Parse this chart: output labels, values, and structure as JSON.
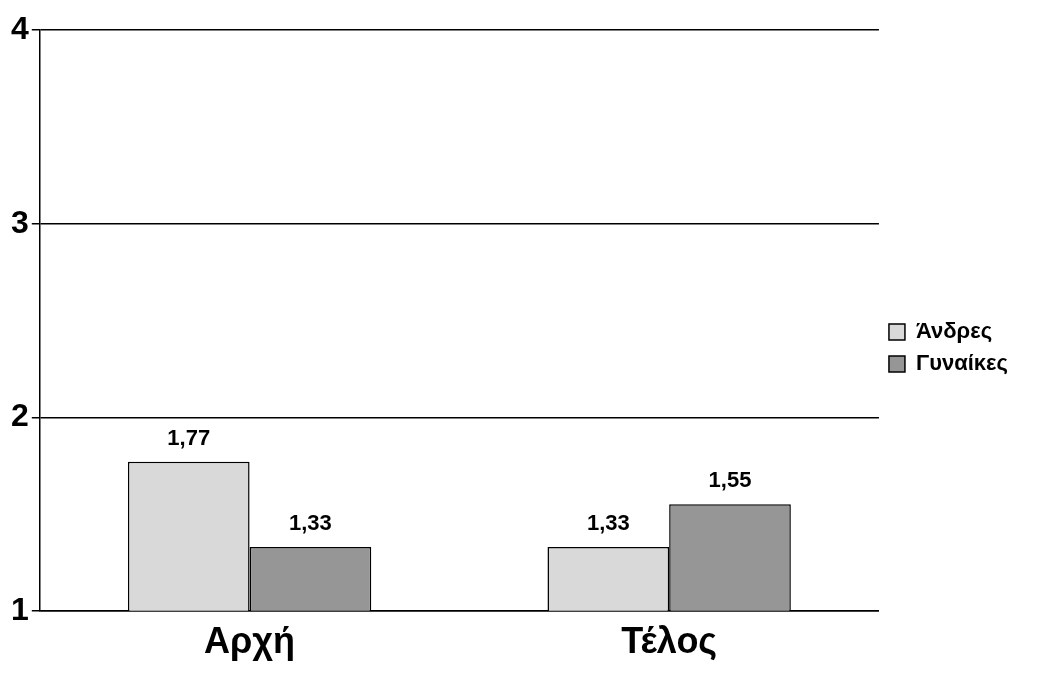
{
  "chart_data": {
    "type": "bar",
    "categories": [
      "Αρχή",
      "Τέλος"
    ],
    "series": [
      {
        "name": "Άνδρες",
        "color": "#d9d9d9",
        "values": [
          1.77,
          1.33
        ],
        "value_labels": [
          "1,77",
          "1,33"
        ]
      },
      {
        "name": "Γυναίκες",
        "color": "#969696",
        "values": [
          1.33,
          1.55
        ],
        "value_labels": [
          "1,33",
          "1,55"
        ]
      }
    ],
    "ylim": [
      1,
      4
    ],
    "yticks": [
      1,
      2,
      3,
      4
    ],
    "grid": "y",
    "legend": "right"
  }
}
